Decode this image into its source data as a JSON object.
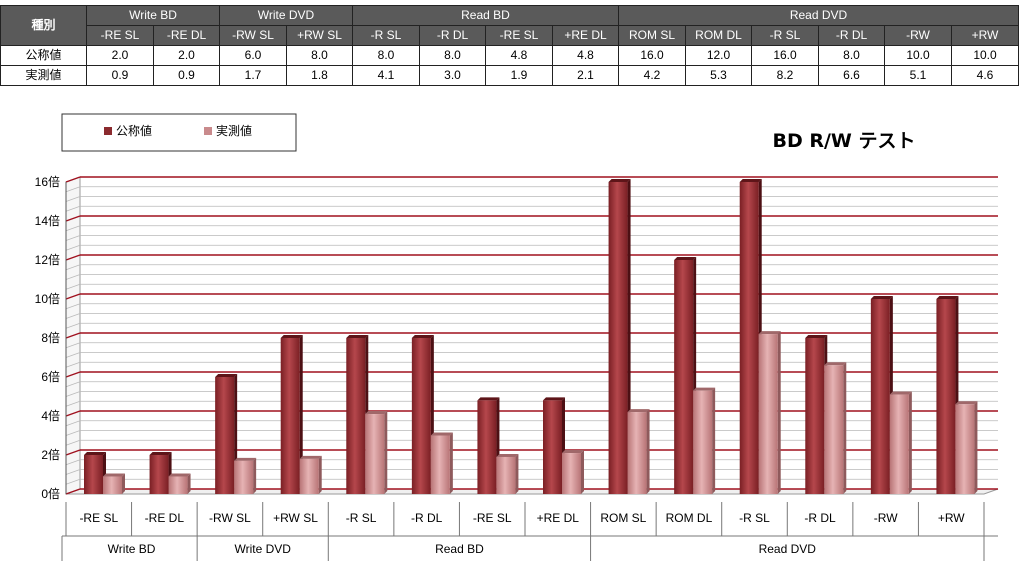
{
  "table": {
    "corner": "種別",
    "groups": [
      {
        "label": "Write BD",
        "span": 2
      },
      {
        "label": "Write DVD",
        "span": 2
      },
      {
        "label": "Read BD",
        "span": 4
      },
      {
        "label": "Read DVD",
        "span": 6
      }
    ],
    "columns": [
      "-RE SL",
      "-RE DL",
      "-RW SL",
      "+RW SL",
      "-R SL",
      "-R DL",
      "-RE SL",
      "+RE DL",
      "ROM SL",
      "ROM DL",
      "-R SL",
      "-R DL",
      "-RW",
      "+RW"
    ],
    "rows": [
      {
        "label": "公称値",
        "values": [
          "2.0",
          "2.0",
          "6.0",
          "8.0",
          "8.0",
          "8.0",
          "4.8",
          "4.8",
          "16.0",
          "12.0",
          "16.0",
          "8.0",
          "10.0",
          "10.0"
        ]
      },
      {
        "label": "実測値",
        "values": [
          "0.9",
          "0.9",
          "1.7",
          "1.8",
          "4.1",
          "3.0",
          "1.9",
          "2.1",
          "4.2",
          "5.3",
          "8.2",
          "6.6",
          "5.1",
          "4.6"
        ]
      }
    ]
  },
  "chart_data": {
    "type": "bar",
    "title": "BD R/W テスト",
    "categories": [
      "-RE SL",
      "-RE DL",
      "-RW SL",
      "+RW SL",
      "-R SL",
      "-R DL",
      "-RE SL",
      "+RE DL",
      "ROM SL",
      "ROM DL",
      "-R SL",
      "-R DL",
      "-RW",
      "+RW"
    ],
    "groups": [
      {
        "label": "Write BD",
        "span": 2
      },
      {
        "label": "Write DVD",
        "span": 2
      },
      {
        "label": "Read BD",
        "span": 4
      },
      {
        "label": "Read DVD",
        "span": 6
      }
    ],
    "series": [
      {
        "name": "公称値",
        "color": "#8b2a2e",
        "values": [
          2.0,
          2.0,
          6.0,
          8.0,
          8.0,
          8.0,
          4.8,
          4.8,
          16.0,
          12.0,
          16.0,
          8.0,
          10.0,
          10.0
        ]
      },
      {
        "name": "実測値",
        "color": "#c98a8c",
        "values": [
          0.9,
          0.9,
          1.7,
          1.8,
          4.1,
          3.0,
          1.9,
          2.1,
          4.2,
          5.3,
          8.2,
          6.6,
          5.1,
          4.6
        ]
      }
    ],
    "y_ticks": [
      "0倍",
      "2倍",
      "4倍",
      "6倍",
      "8倍",
      "10倍",
      "12倍",
      "14倍",
      "16倍"
    ],
    "ylim": [
      0,
      16
    ],
    "grid": true,
    "legend_position": "top-left",
    "gridline_color": "#a0101e"
  }
}
